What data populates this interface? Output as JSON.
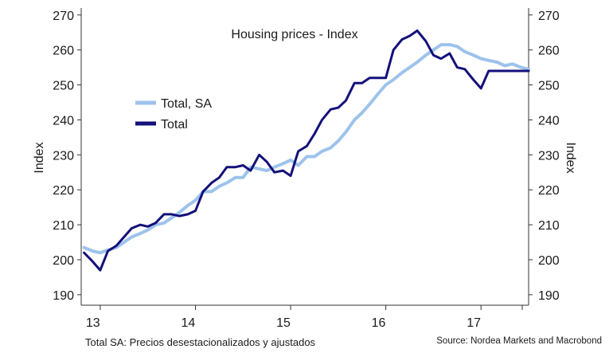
{
  "footnote": "Total SA: Precios desestacionalizados y ajustados",
  "source": "Source: Nordea Markets and Macrobond",
  "chart_data": {
    "type": "line",
    "title": "Housing prices - Index",
    "ylabel_left": "Index",
    "ylabel_right": "Index",
    "ylim": [
      187,
      272
    ],
    "yticks": [
      190,
      200,
      210,
      220,
      230,
      240,
      250,
      260,
      270
    ],
    "xlim": [
      12.8,
      17.5
    ],
    "xticks": [
      13,
      14,
      15,
      16,
      17
    ],
    "xtick_labels": [
      "13",
      "14",
      "15",
      "16",
      "17"
    ],
    "grid": false,
    "legend_position": "upper-left",
    "series": [
      {
        "name": "Total, SA",
        "color": "#9dc3ec",
        "x": [
          12.83,
          12.92,
          13.0,
          13.08,
          13.17,
          13.25,
          13.33,
          13.42,
          13.5,
          13.58,
          13.67,
          13.75,
          13.83,
          13.92,
          14.0,
          14.08,
          14.17,
          14.25,
          14.33,
          14.42,
          14.5,
          14.58,
          14.67,
          14.75,
          14.83,
          14.92,
          15.0,
          15.08,
          15.17,
          15.25,
          15.33,
          15.42,
          15.5,
          15.58,
          15.67,
          15.75,
          15.83,
          15.92,
          16.0,
          16.08,
          16.17,
          16.25,
          16.33,
          16.42,
          16.5,
          16.58,
          16.67,
          16.75,
          16.83,
          16.92,
          17.0,
          17.08,
          17.17,
          17.25,
          17.33,
          17.42,
          17.5
        ],
        "values": [
          203.5,
          202.5,
          202.0,
          202.8,
          203.5,
          205.0,
          206.5,
          207.5,
          208.5,
          210.0,
          210.5,
          212.0,
          213.5,
          215.5,
          217.0,
          219.5,
          219.5,
          221.0,
          222.0,
          223.5,
          223.5,
          226.5,
          226.0,
          225.5,
          226.5,
          227.5,
          228.5,
          227.0,
          229.5,
          229.5,
          231.0,
          232.0,
          234.0,
          236.5,
          240.0,
          242.0,
          244.5,
          247.5,
          250.0,
          251.5,
          253.5,
          255.0,
          256.5,
          258.5,
          260.0,
          261.5,
          261.5,
          261.0,
          259.5,
          258.5,
          257.5,
          257.0,
          256.5,
          255.5,
          256.0,
          255.0,
          254.5
        ]
      },
      {
        "name": "Total",
        "color": "#13107a",
        "x": [
          12.83,
          12.92,
          13.0,
          13.08,
          13.17,
          13.25,
          13.33,
          13.42,
          13.5,
          13.58,
          13.67,
          13.75,
          13.83,
          13.92,
          14.0,
          14.08,
          14.17,
          14.25,
          14.33,
          14.42,
          14.5,
          14.58,
          14.67,
          14.75,
          14.83,
          14.92,
          15.0,
          15.08,
          15.17,
          15.25,
          15.33,
          15.42,
          15.5,
          15.58,
          15.67,
          15.75,
          15.83,
          15.92,
          16.0,
          16.08,
          16.17,
          16.25,
          16.33,
          16.42,
          16.5,
          16.58,
          16.67,
          16.75,
          16.83,
          16.92,
          17.0,
          17.08,
          17.17,
          17.25,
          17.33,
          17.42,
          17.5
        ],
        "values": [
          202.0,
          199.5,
          197.0,
          202.5,
          204.0,
          206.5,
          209.0,
          210.0,
          209.5,
          210.5,
          213.0,
          213.0,
          212.5,
          213.0,
          214.0,
          219.5,
          222.0,
          223.5,
          226.5,
          226.5,
          227.0,
          225.5,
          230.0,
          228.0,
          225.0,
          225.5,
          224.0,
          231.0,
          232.5,
          236.0,
          240.0,
          243.0,
          243.5,
          245.5,
          250.5,
          250.5,
          252.0,
          252.0,
          252.0,
          260.0,
          263.0,
          264.0,
          265.5,
          262.5,
          258.5,
          257.5,
          259.0,
          255.0,
          254.5,
          251.5,
          249.0,
          254.0,
          254.0,
          254.0,
          254.0,
          254.0,
          254.0
        ]
      }
    ]
  }
}
